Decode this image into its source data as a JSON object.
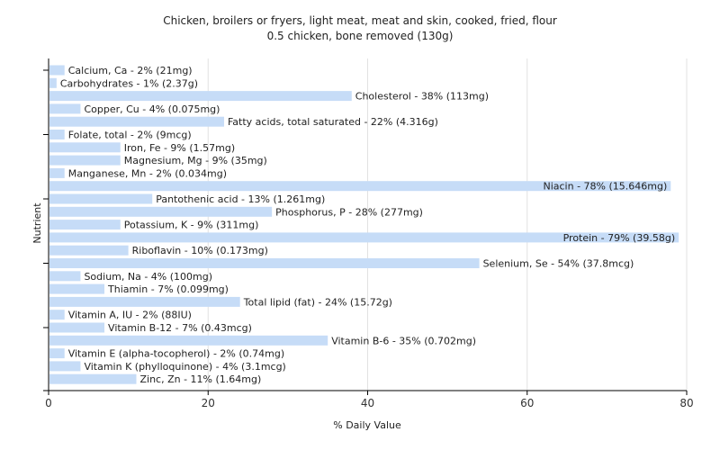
{
  "title": "Chicken, broilers or fryers, light meat, meat and skin, cooked, fried, flour",
  "subtitle": "0.5 chicken, bone removed (130g)",
  "chart_data": {
    "type": "bar",
    "orientation": "horizontal",
    "title": "Chicken, broilers or fryers, light meat, meat and skin, cooked, fried, flour",
    "subtitle": "0.5 chicken, bone removed (130g)",
    "xlabel": "% Daily Value",
    "ylabel": "Nutrient",
    "xlim": [
      0,
      80
    ],
    "xticks": [
      0,
      20,
      40,
      60,
      80
    ],
    "grid": true,
    "bar_color": "#c6dcf7",
    "categories": [
      "Calcium, Ca",
      "Carbohydrates",
      "Cholesterol",
      "Copper, Cu",
      "Fatty acids, total saturated",
      "Folate, total",
      "Iron, Fe",
      "Magnesium, Mg",
      "Manganese, Mn",
      "Niacin",
      "Pantothenic acid",
      "Phosphorus, P",
      "Potassium, K",
      "Protein",
      "Riboflavin",
      "Selenium, Se",
      "Sodium, Na",
      "Thiamin",
      "Total lipid (fat)",
      "Vitamin A, IU",
      "Vitamin B-12",
      "Vitamin B-6",
      "Vitamin E (alpha-tocopherol)",
      "Vitamin K (phylloquinone)",
      "Zinc, Zn"
    ],
    "values": [
      2,
      1,
      38,
      4,
      22,
      2,
      9,
      9,
      2,
      78,
      13,
      28,
      9,
      79,
      10,
      54,
      4,
      7,
      24,
      2,
      7,
      35,
      2,
      4,
      11
    ],
    "labels": [
      "Calcium, Ca - 2% (21mg)",
      "Carbohydrates - 1% (2.37g)",
      "Cholesterol - 38% (113mg)",
      "Copper, Cu - 4% (0.075mg)",
      "Fatty acids, total saturated - 22% (4.316g)",
      "Folate, total - 2% (9mcg)",
      "Iron, Fe - 9% (1.57mg)",
      "Magnesium, Mg - 9% (35mg)",
      "Manganese, Mn - 2% (0.034mg)",
      "Niacin - 78% (15.646mg)",
      "Pantothenic acid - 13% (1.261mg)",
      "Phosphorus, P - 28% (277mg)",
      "Potassium, K - 9% (311mg)",
      "Protein - 79% (39.58g)",
      "Riboflavin - 10% (0.173mg)",
      "Selenium, Se - 54% (37.8mcg)",
      "Sodium, Na - 4% (100mg)",
      "Thiamin - 7% (0.099mg)",
      "Total lipid (fat) - 24% (15.72g)",
      "Vitamin A, IU - 2% (88IU)",
      "Vitamin B-12 - 7% (0.43mcg)",
      "Vitamin B-6 - 35% (0.702mg)",
      "Vitamin E (alpha-tocopherol) - 2% (0.74mg)",
      "Vitamin K (phylloquinone) - 4% (3.1mcg)",
      "Zinc, Zn - 11% (1.64mg)"
    ]
  }
}
